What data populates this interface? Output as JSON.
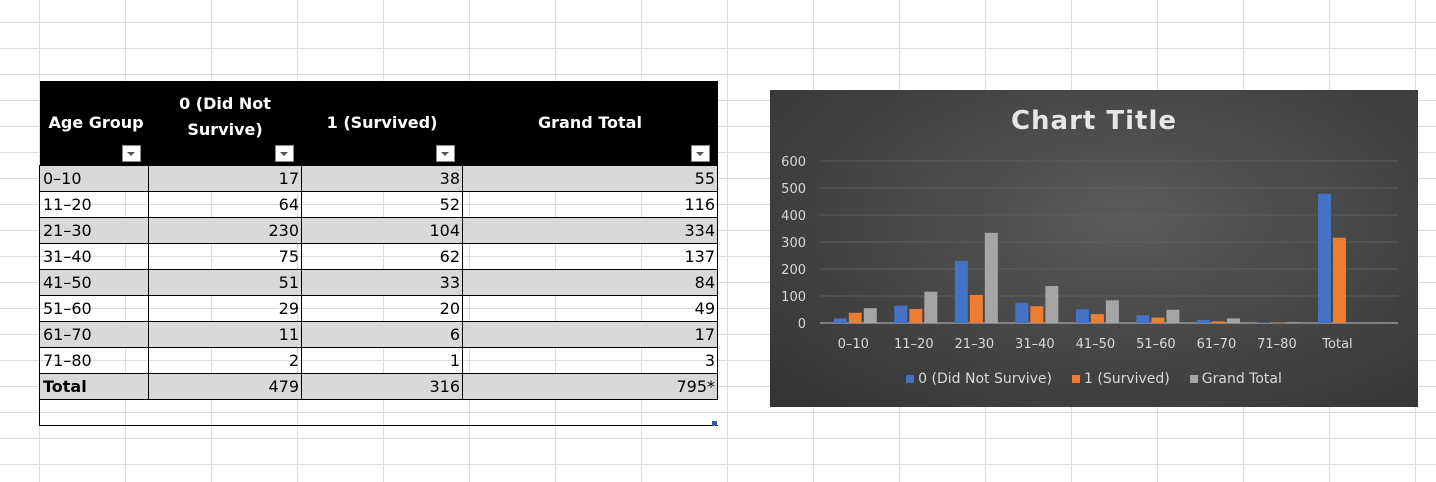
{
  "table": {
    "headers": [
      "Age Group",
      "0 (Did Not Survive)",
      "1 (Survived)",
      "Grand Total"
    ],
    "header_lines": [
      [
        "Age Group"
      ],
      [
        "0 (Did Not",
        "Survive)"
      ],
      [
        "1 (Survived)"
      ],
      [
        "Grand Total"
      ]
    ],
    "rows": [
      [
        "0–10",
        "17",
        "38",
        "55"
      ],
      [
        "11–20",
        "64",
        "52",
        "116"
      ],
      [
        "21–30",
        "230",
        "104",
        "334"
      ],
      [
        "31–40",
        "75",
        "62",
        "137"
      ],
      [
        "41–50",
        "51",
        "33",
        "84"
      ],
      [
        "51–60",
        "29",
        "20",
        "49"
      ],
      [
        "61–70",
        "11",
        "6",
        "17"
      ],
      [
        "71–80",
        "2",
        "1",
        "3"
      ],
      [
        "Total",
        "479",
        "316",
        "795*"
      ]
    ]
  },
  "chart_data": {
    "type": "bar",
    "title": "Chart Title",
    "categories": [
      "0–10",
      "11–20",
      "21–30",
      "31–40",
      "41–50",
      "51–60",
      "61–70",
      "71–80",
      "Total"
    ],
    "series": [
      {
        "name": "0 (Did Not Survive)",
        "values": [
          17,
          64,
          230,
          75,
          51,
          29,
          11,
          2,
          479
        ],
        "color": "#4472c4"
      },
      {
        "name": "1 (Survived)",
        "values": [
          38,
          52,
          104,
          62,
          33,
          20,
          6,
          1,
          316
        ],
        "color": "#ed7d31"
      },
      {
        "name": "Grand Total",
        "values": [
          55,
          116,
          334,
          137,
          84,
          49,
          17,
          3,
          null
        ],
        "color": "#a5a5a5"
      }
    ],
    "ylim": [
      0,
      600
    ],
    "yticks": [
      0,
      100,
      200,
      300,
      400,
      500,
      600
    ],
    "grid": true,
    "legend": "bottom"
  }
}
